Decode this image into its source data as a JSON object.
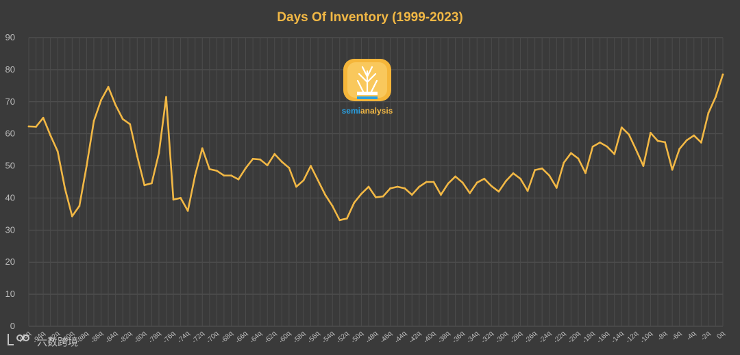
{
  "chart_data": {
    "type": "line",
    "title": "Days Of Inventory (1999-2023)",
    "xlabel": "",
    "ylabel": "",
    "ylim": [
      0,
      90
    ],
    "yticks": [
      0,
      10,
      20,
      30,
      40,
      50,
      60,
      70,
      80,
      90
    ],
    "x": [
      "-96q",
      "-95q",
      "-94q",
      "-93q",
      "-92q",
      "-91q",
      "-90q",
      "-89q",
      "-88q",
      "-87q",
      "-86q",
      "-85q",
      "-84q",
      "-83q",
      "-82q",
      "-81q",
      "-80q",
      "-79q",
      "-78q",
      "-77q",
      "-76q",
      "-75q",
      "-74q",
      "-73q",
      "-72q",
      "-71q",
      "-70q",
      "-69q",
      "-68q",
      "-67q",
      "-66q",
      "-65q",
      "-64q",
      "-63q",
      "-62q",
      "-61q",
      "-60q",
      "-59q",
      "-58q",
      "-57q",
      "-56q",
      "-55q",
      "-54q",
      "-53q",
      "-52q",
      "-51q",
      "-50q",
      "-49q",
      "-48q",
      "-47q",
      "-46q",
      "-45q",
      "-44q",
      "-43q",
      "-42q",
      "-41q",
      "-40q",
      "-39q",
      "-38q",
      "-37q",
      "-36q",
      "-35q",
      "-34q",
      "-33q",
      "-32q",
      "-31q",
      "-30q",
      "-29q",
      "-28q",
      "-27q",
      "-26q",
      "-25q",
      "-24q",
      "-23q",
      "-22q",
      "-21q",
      "-20q",
      "-19q",
      "-18q",
      "-17q",
      "-16q",
      "-15q",
      "-14q",
      "-13q",
      "-12q",
      "-11q",
      "-10q",
      "-9q",
      "-8q",
      "-7q",
      "-6q",
      "-5q",
      "-4q",
      "-3q",
      "-2q",
      "-1q",
      "0q"
    ],
    "xtick_labels": [
      "-96q",
      "-94q",
      "-92q",
      "-90q",
      "-88q",
      "-86q",
      "-84q",
      "-82q",
      "-80q",
      "-78q",
      "-76q",
      "-74q",
      "-72q",
      "-70q",
      "-68q",
      "-66q",
      "-64q",
      "-62q",
      "-60q",
      "-58q",
      "-56q",
      "-54q",
      "-52q",
      "-50q",
      "-48q",
      "-46q",
      "-44q",
      "-42q",
      "-40q",
      "-38q",
      "-36q",
      "-34q",
      "-32q",
      "-30q",
      "-28q",
      "-26q",
      "-24q",
      "-22q",
      "-20q",
      "-18q",
      "-16q",
      "-14q",
      "-12q",
      "-10q",
      "-8q",
      "-6q",
      "-4q",
      "-2q",
      "0q"
    ],
    "series": [
      {
        "color": "#f2b845",
        "values": [
          62.3,
          62.2,
          65.0,
          59.5,
          54.5,
          43.0,
          34.3,
          37.5,
          50.0,
          64.0,
          70.5,
          74.6,
          69.0,
          64.6,
          63.0,
          53.0,
          44.0,
          44.6,
          54.0,
          71.5,
          39.5,
          40.0,
          36.0,
          47.0,
          55.5,
          49.0,
          48.5,
          47.0,
          47.0,
          45.8,
          49.3,
          52.2,
          52.0,
          50.2,
          53.7,
          51.3,
          49.4,
          43.5,
          45.5,
          50.0,
          45.5,
          41.0,
          37.5,
          33.1,
          33.6,
          38.5,
          41.3,
          43.5,
          40.2,
          40.5,
          43.0,
          43.5,
          43.0,
          41.0,
          43.5,
          45.0,
          45.0,
          41.0,
          44.5,
          46.7,
          44.8,
          41.5,
          44.8,
          46.0,
          43.7,
          42.0,
          45.3,
          47.7,
          46.0,
          42.2,
          48.7,
          49.2,
          47.0,
          43.2,
          51.0,
          54.0,
          52.3,
          47.8,
          56.0,
          57.3,
          56.0,
          53.7,
          62.0,
          59.8,
          55.0,
          50.0,
          60.3,
          57.8,
          57.4,
          48.8,
          55.3,
          58.0,
          59.5,
          57.3,
          66.5,
          71.5,
          78.5
        ]
      }
    ],
    "grid": true,
    "legend": "none"
  },
  "logo": {
    "text_blue": "semi",
    "text_orange": "analysis"
  },
  "watermark": {
    "text": "六数跨境"
  }
}
